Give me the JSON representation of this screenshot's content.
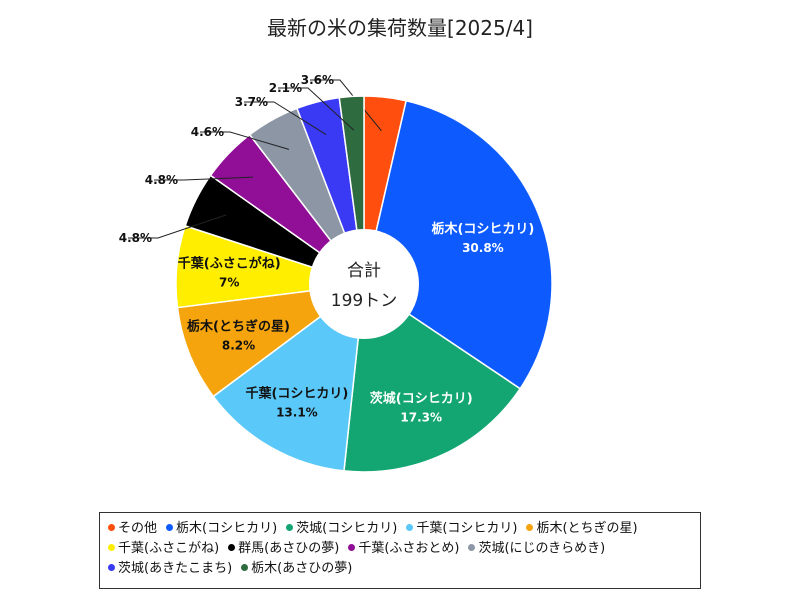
{
  "chart_data": {
    "type": "pie",
    "title": "最新の米の集荷数量[2025/4]",
    "center_label": "合計",
    "center_value": "199トン",
    "slices": [
      {
        "name": "その他",
        "value": 3.6,
        "label": "3.6%",
        "color": "#ff4e0e"
      },
      {
        "name": "栃木(コシヒカリ)",
        "value": 30.8,
        "label": "30.8%",
        "color": "#0d5bff"
      },
      {
        "name": "茨城(コシヒカリ)",
        "value": 17.3,
        "label": "17.3%",
        "color": "#13a672"
      },
      {
        "name": "千葉(コシヒカリ)",
        "value": 13.1,
        "label": "13.1%",
        "color": "#5ac8f8"
      },
      {
        "name": "栃木(とちぎの星)",
        "value": 8.2,
        "label": "8.2%",
        "color": "#f5a40d"
      },
      {
        "name": "千葉(ふさこがね)",
        "value": 7,
        "label": "7%",
        "color": "#ffee00"
      },
      {
        "name": "群馬(あさひの夢)",
        "value": 4.8,
        "label": "4.8%",
        "color": "#000000"
      },
      {
        "name": "千葉(ふさおとめ)",
        "value": 4.8,
        "label": "4.8%",
        "color": "#910f96"
      },
      {
        "name": "茨城(にじのきらめき)",
        "value": 4.6,
        "label": "4.6%",
        "color": "#8c96a4"
      },
      {
        "name": "茨城(あきたこまち)",
        "value": 3.7,
        "label": "3.7%",
        "color": "#3a3af5"
      },
      {
        "name": "栃木(あさひの夢)",
        "value": 2.1,
        "label": "2.1%",
        "color": "#2e6b3f"
      }
    ],
    "legend_position": "bottom"
  }
}
